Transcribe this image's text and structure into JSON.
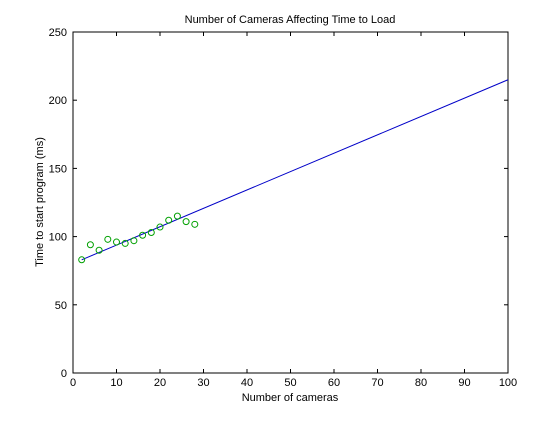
{
  "chart_data": {
    "type": "scatter",
    "title": "Number of Cameras Affecting Time to Load",
    "xlabel": "Number of cameras",
    "ylabel": "Time to start program (ms)",
    "xlim": [
      0,
      100
    ],
    "ylim": [
      0,
      250
    ],
    "xticks": [
      0,
      10,
      20,
      30,
      40,
      50,
      60,
      70,
      80,
      90,
      100
    ],
    "yticks": [
      0,
      50,
      100,
      150,
      200,
      250
    ],
    "grid": false,
    "series": [
      {
        "kind": "scatter",
        "marker": "circle-open",
        "color": "#00a000",
        "x": [
          2,
          4,
          6,
          8,
          10,
          12,
          14,
          16,
          18,
          20,
          22,
          24,
          26,
          28
        ],
        "y": [
          83,
          94,
          90,
          98,
          96,
          95,
          97,
          101,
          103,
          107,
          112,
          115,
          111,
          109
        ]
      },
      {
        "kind": "line",
        "color": "#0000c8",
        "x": [
          2,
          100
        ],
        "y": [
          83,
          215
        ]
      }
    ]
  }
}
